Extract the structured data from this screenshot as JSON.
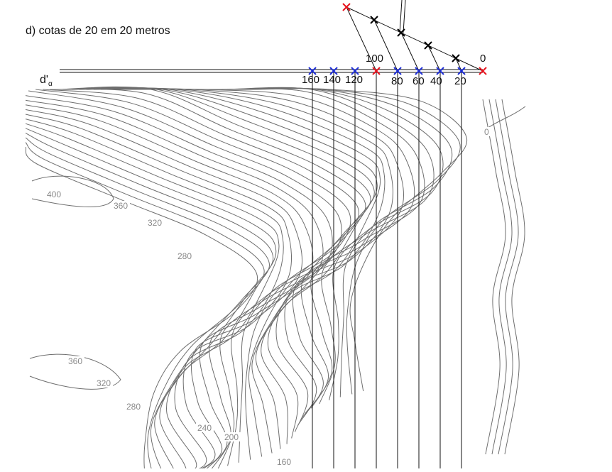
{
  "caption": "d) cotas de 20 em 20 metros",
  "line_label": {
    "main": "d'",
    "sub": "α"
  },
  "scale_labels": [
    "160",
    "140",
    "120",
    "100",
    "80",
    "60",
    "40",
    "20",
    "0"
  ],
  "contour_labels": [
    "400",
    "360",
    "320",
    "280",
    "360",
    "320",
    "280",
    "240",
    "200",
    "160",
    "0"
  ],
  "colors": {
    "contour": "#6e6e6e",
    "line": "#111111",
    "red_marker": "#e8141e",
    "blue_marker": "#1f2fd6",
    "black_marker": "#000000"
  }
}
